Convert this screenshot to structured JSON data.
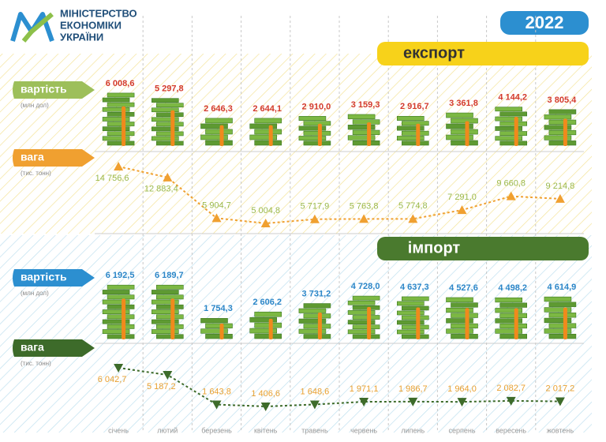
{
  "logo": [
    "МІНІСТЕРСТВО",
    "ЕКОНОМІКИ",
    "УКРАЇНИ"
  ],
  "chart_data": {
    "type": "pictogram-line",
    "title": "2022",
    "categories": [
      "січень",
      "лютий",
      "березень",
      "квітень",
      "травень",
      "червень",
      "липень",
      "серпень",
      "вересень",
      "жовтень"
    ],
    "sections": [
      {
        "title": "експорт",
        "title_color": "#f7d21a",
        "series": [
          {
            "type": "pictogram",
            "name": "вартість",
            "unit": "(млн дол)",
            "color": "#9dbf5a",
            "label_color": "#d33a2c",
            "values": [
              6008.6,
              5297.8,
              2646.3,
              2644.1,
              2910.0,
              3159.3,
              2916.7,
              3361.8,
              4144.2,
              3805.4
            ],
            "value_labels": [
              "6 008,6",
              "5 297,8",
              "2 646,3",
              "2 644,1",
              "2 910,0",
              "3 159,3",
              "2 916,7",
              "3 361,8",
              "4 144,2",
              "3 805,4"
            ]
          },
          {
            "type": "line",
            "name": "вага",
            "unit": "(тис. тонн)",
            "color": "#f0a030",
            "label_color": "#9ab84a",
            "values": [
              14756.6,
              12883.4,
              5904.7,
              5004.8,
              5717.9,
              5763.8,
              5774.8,
              7291.0,
              9660.8,
              9214.8
            ],
            "value_labels": [
              "14 756,6",
              "12 883,4",
              "5 904,7",
              "5 004,8",
              "5 717,9",
              "5 763,8",
              "5 774,8",
              "7 291,0",
              "9 660,8",
              "9 214,8"
            ]
          }
        ]
      },
      {
        "title": "імпорт",
        "title_color": "#4a7a2e",
        "series": [
          {
            "type": "pictogram",
            "name": "вартість",
            "unit": "(млн дол)",
            "color": "#2c8fd0",
            "label_color": "#2b86c8",
            "values": [
              6192.5,
              6189.7,
              1754.3,
              2606.2,
              3731.2,
              4728.0,
              4637.3,
              4527.6,
              4498.2,
              4614.9
            ],
            "value_labels": [
              "6 192,5",
              "6 189,7",
              "1 754,3",
              "2 606,2",
              "3 731,2",
              "4 728,0",
              "4 637,3",
              "4 527,6",
              "4 498,2",
              "4 614,9"
            ]
          },
          {
            "type": "line",
            "name": "вага",
            "unit": "(тис. тонн)",
            "color": "#3d6b2a",
            "label_color": "#e8a030",
            "values": [
              6042.7,
              5187.2,
              1643.8,
              1406.6,
              1648.6,
              1971.1,
              1986.7,
              1964.0,
              2082.7,
              2017.2
            ],
            "value_labels": [
              "6 042,7",
              "5 187,2",
              "1 643,8",
              "1 406,6",
              "1 648,6",
              "1 971,1",
              "1 986,7",
              "1 964,0",
              "2 082,7",
              "2 017,2"
            ]
          }
        ]
      }
    ]
  }
}
